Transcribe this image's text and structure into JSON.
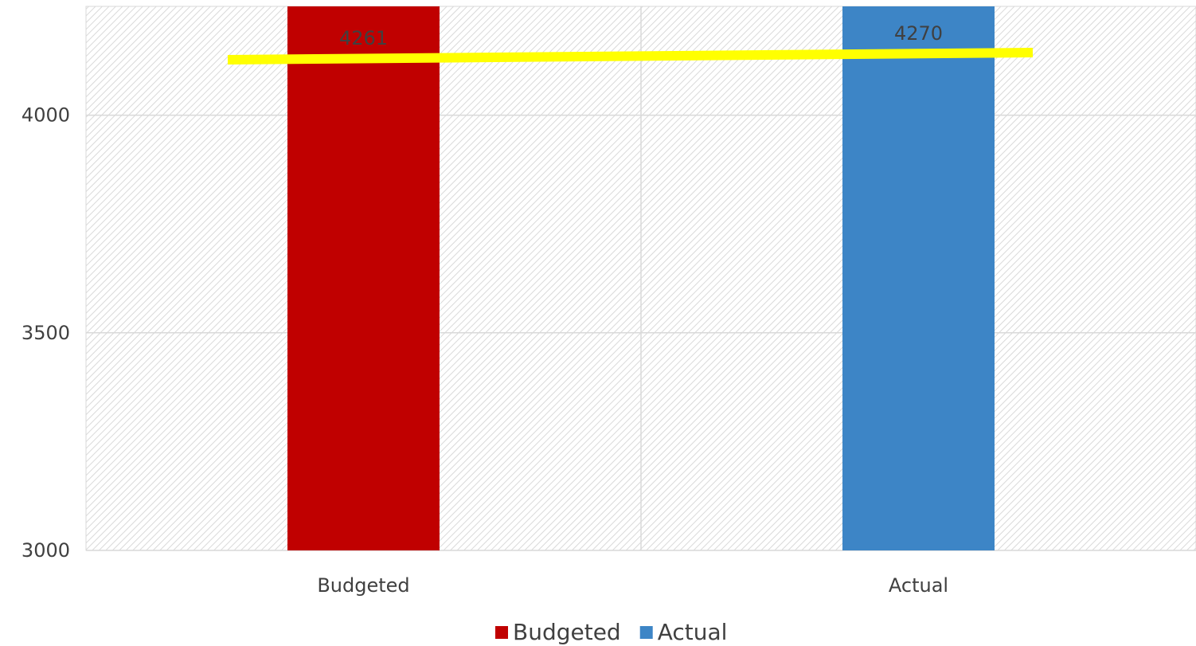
{
  "chart_data": {
    "type": "bar",
    "categories": [
      "Budgeted",
      "Actual"
    ],
    "values": [
      4261,
      4270
    ],
    "data_labels": [
      "4261",
      "4270"
    ],
    "colors": [
      "#C00000",
      "#3D85C6"
    ],
    "ylim": [
      3000,
      4250
    ],
    "yticks": [
      3000,
      3500,
      4000
    ],
    "ytick_labels": [
      "3000",
      "3500",
      "4000"
    ],
    "grid": true,
    "legend": {
      "position": "bottom",
      "entries": [
        {
          "label": "Budgeted",
          "color": "#C00000"
        },
        {
          "label": "Actual",
          "color": "#3D85C6"
        }
      ]
    },
    "annotation_line": {
      "color": "#FFFF00",
      "from": {
        "category": "Budgeted",
        "value": 4261
      },
      "to": {
        "category": "Actual",
        "value": 4270
      }
    },
    "title": "",
    "xlabel": "",
    "ylabel": ""
  }
}
